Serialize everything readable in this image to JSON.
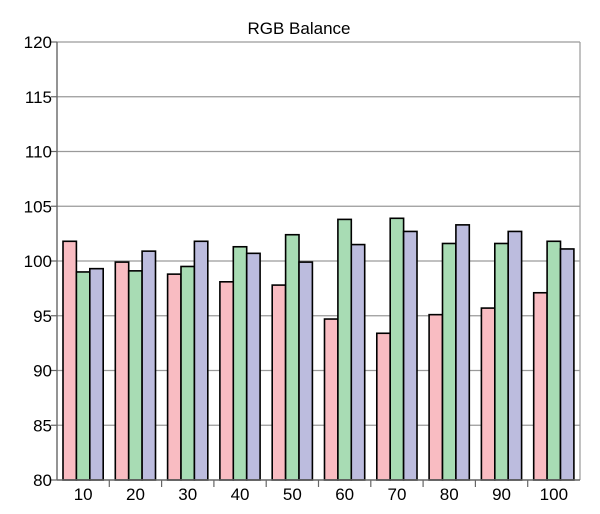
{
  "chart_data": {
    "type": "bar",
    "title": "RGB Balance",
    "xlabel": "",
    "ylabel": "",
    "ylim": [
      80,
      120
    ],
    "yticks": [
      80,
      85,
      90,
      95,
      100,
      105,
      110,
      115,
      120
    ],
    "grid": true,
    "legend": "none",
    "categories": [
      "10",
      "20",
      "30",
      "40",
      "50",
      "60",
      "70",
      "80",
      "90",
      "100"
    ],
    "series": [
      {
        "color": "#f9bcc2",
        "values": [
          101.8,
          99.9,
          98.8,
          98.1,
          97.8,
          94.7,
          93.4,
          95.1,
          95.7,
          97.1
        ]
      },
      {
        "color": "#a8dcb4",
        "values": [
          99.0,
          99.1,
          99.5,
          101.3,
          102.4,
          103.8,
          103.9,
          101.6,
          101.6,
          101.8
        ]
      },
      {
        "color": "#bcbcde",
        "values": [
          99.3,
          100.9,
          101.8,
          100.7,
          99.9,
          101.5,
          102.7,
          103.3,
          102.7,
          101.1
        ]
      }
    ]
  }
}
